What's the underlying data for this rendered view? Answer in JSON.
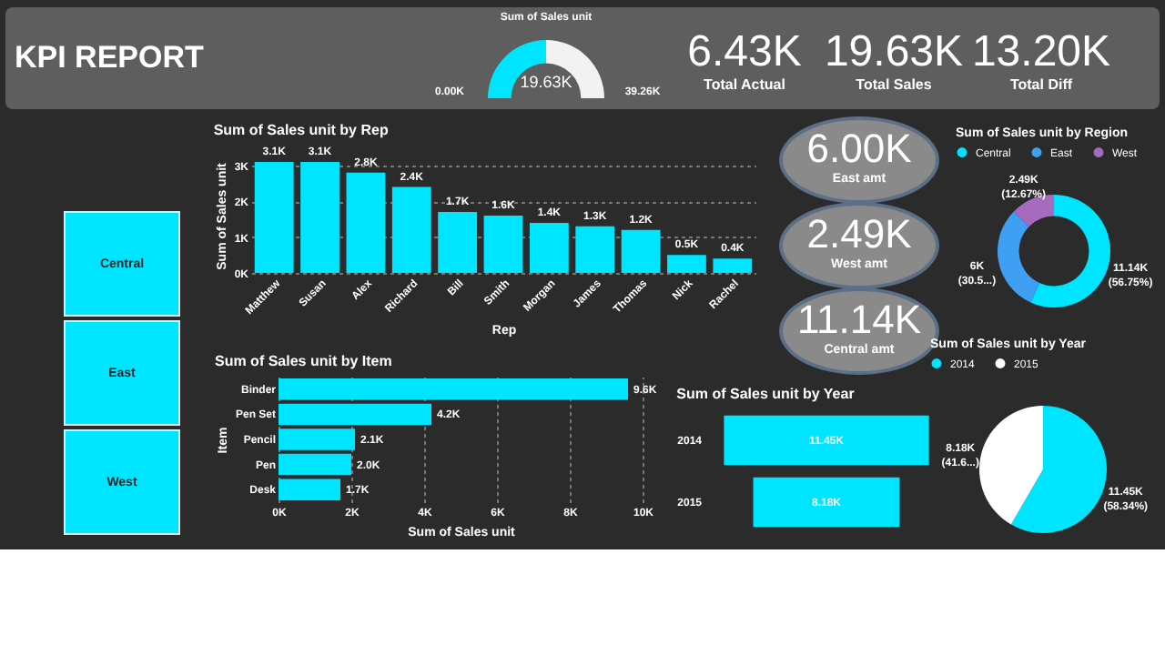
{
  "chart_data": [
    {
      "type": "other",
      "title": "KPI REPORT",
      "annotations": [
        "6.43K",
        "Total Actual",
        "19.63K",
        "Total Sales",
        "13.20K",
        "Total Diff"
      ]
    },
    {
      "type": "donut",
      "title": "Sum of Sales unit",
      "categories": [
        null,
        null
      ],
      "values": [
        50,
        50
      ],
      "colors": [
        "#00e5ff",
        "#f2f2f2"
      ],
      "annotations": [
        "19.63K",
        "0.00K",
        "39.26K"
      ]
    },
    {
      "type": "other",
      "annotations": [
        "Central",
        "East",
        "West"
      ]
    },
    {
      "type": "bar",
      "title": "Sum of Sales unit by Rep",
      "xlabel": "Rep",
      "ylabel": "Sum of Sales unit",
      "categories": [
        "Matthew",
        "Susan",
        "Alex",
        "Richard",
        "Bill",
        "Smith",
        "Morgan",
        "James",
        "Thomas",
        "Nick",
        "Rachel"
      ],
      "values": [
        3100,
        3100,
        2800,
        2400,
        1700,
        1600,
        1400,
        1300,
        1200,
        500,
        400
      ],
      "value_labels": [
        "3.1K",
        "3.1K",
        "2.8K",
        "2.4K",
        "1.7K",
        "1.6K",
        "1.4K",
        "1.3K",
        "1.2K",
        "0.5K",
        "0.4K"
      ],
      "color": "#00e5ff",
      "ylim": [
        0,
        3200
      ],
      "yticks": [
        {
          "value": 0,
          "label": "0K"
        },
        {
          "value": 1000,
          "label": "1K"
        },
        {
          "value": 2000,
          "label": "2K"
        },
        {
          "value": 3000,
          "label": "3K"
        }
      ],
      "grid": "y"
    },
    {
      "type": "other",
      "annotations": [
        "6.00K",
        "East amt",
        "2.49K",
        "West amt",
        "11.14K",
        "Central amt"
      ]
    },
    {
      "type": "donut",
      "title": "Sum of Sales unit by Region",
      "categories": [
        "Central",
        "East",
        "West"
      ],
      "values": [
        56.75,
        30.5,
        12.67
      ],
      "colors": [
        "#00e5ff",
        "#3f9ff2",
        "#a66bbe"
      ],
      "value_labels": [
        "11.14K (56.75%)",
        "6K (30.5...)",
        "2.49K (12.67%)"
      ],
      "legend": "top"
    },
    {
      "type": "bar",
      "orientation": "horizontal",
      "title": "Sum of Sales unit by Item",
      "xlabel": "Sum of Sales unit",
      "ylabel": "Item",
      "categories": [
        "Binder",
        "Pen Set",
        "Pencil",
        "Pen",
        "Desk"
      ],
      "values": [
        9600,
        4200,
        2100,
        2000,
        1700
      ],
      "value_labels": [
        "9.6K",
        "4.2K",
        "2.1K",
        "2.0K",
        "1.7K"
      ],
      "color": "#00e5ff",
      "xlim": [
        0,
        10000
      ],
      "xticks": [
        {
          "value": 0,
          "label": "0K"
        },
        {
          "value": 2000,
          "label": "2K"
        },
        {
          "value": 4000,
          "label": "4K"
        },
        {
          "value": 6000,
          "label": "6K"
        },
        {
          "value": 8000,
          "label": "8K"
        },
        {
          "value": 10000,
          "label": "10K"
        }
      ],
      "grid": "x"
    },
    {
      "type": "other",
      "title": "Sum of Sales unit by Year",
      "categories": [
        "2014",
        "2015"
      ],
      "values": [
        11450,
        8180
      ],
      "value_labels": [
        "11.45K",
        "8.18K"
      ],
      "color": "#00e5ff"
    },
    {
      "type": "pie",
      "title": "Sum of Sales unit by Year",
      "categories": [
        "2014",
        "2015"
      ],
      "values": [
        58.34,
        41.6
      ],
      "colors": [
        "#00e5ff",
        "#ffffff"
      ],
      "value_labels": [
        "11.45K (58.34%)",
        "8.18K (41.6...)"
      ],
      "legend": "top"
    }
  ]
}
